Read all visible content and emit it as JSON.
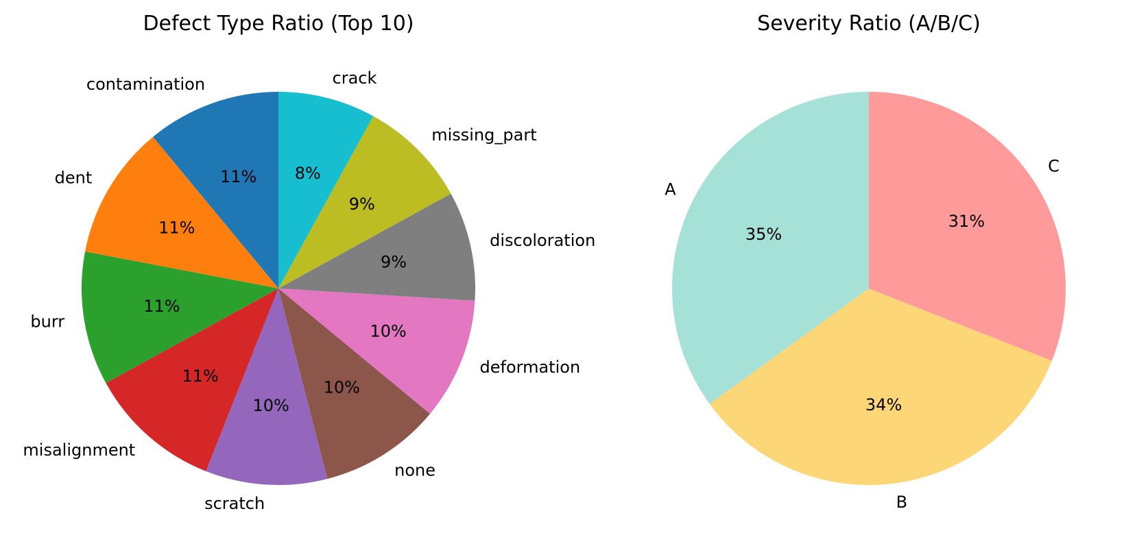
{
  "chart_data": [
    {
      "type": "pie",
      "title": "Defect Type Ratio (Top 10)",
      "start_angle_deg": 90,
      "direction": "counterclockwise",
      "labels": [
        "contamination",
        "dent",
        "burr",
        "misalignment",
        "scratch",
        "none",
        "deformation",
        "discoloration",
        "missing_part",
        "crack"
      ],
      "values": [
        11,
        11,
        11,
        11,
        10,
        10,
        10,
        9,
        9,
        8
      ],
      "percent_labels": [
        "11%",
        "11%",
        "11%",
        "11%",
        "10%",
        "10%",
        "10%",
        "9%",
        "9%",
        "8%"
      ],
      "colors": [
        "#1f77b4",
        "#ff7f0e",
        "#2ca02c",
        "#d62728",
        "#9467bd",
        "#8c564b",
        "#e377c2",
        "#7f7f7f",
        "#bcbd22",
        "#17becf"
      ]
    },
    {
      "type": "pie",
      "title": "Severity Ratio (A/B/C)",
      "start_angle_deg": 90,
      "direction": "counterclockwise",
      "labels": [
        "A",
        "B",
        "C"
      ],
      "values": [
        35,
        34,
        31
      ],
      "percent_labels": [
        "35%",
        "34%",
        "31%"
      ],
      "colors": [
        "#a5e1d6",
        "#fdd677",
        "#fe9a9a"
      ]
    }
  ]
}
